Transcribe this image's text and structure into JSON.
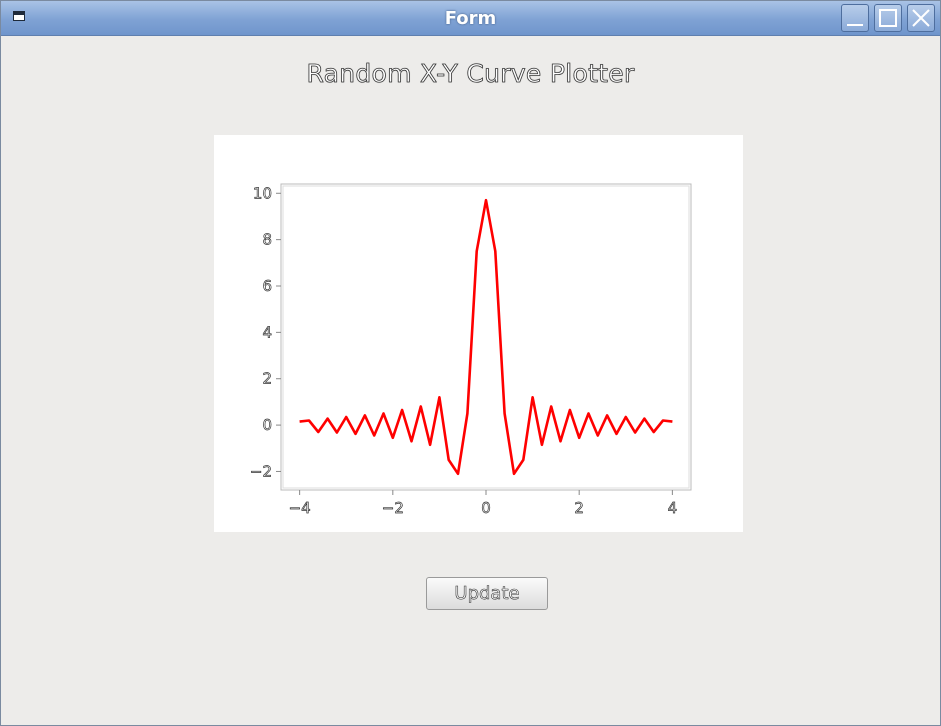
{
  "window": {
    "title": "Form"
  },
  "heading": "Random X-Y Curve Plotter",
  "chart_data": {
    "type": "line",
    "title": "",
    "xlabel": "",
    "ylabel": "",
    "xlim": [
      -4.4,
      4.4
    ],
    "ylim": [
      -2.8,
      10.4
    ],
    "x_ticks": [
      -4,
      -2,
      0,
      2,
      4
    ],
    "x_tick_labels": [
      "−4",
      "−2",
      "0",
      "2",
      "4"
    ],
    "y_ticks": [
      -2,
      0,
      2,
      4,
      6,
      8,
      10
    ],
    "y_tick_labels": [
      "−2",
      "0",
      "2",
      "4",
      "6",
      "8",
      "10"
    ],
    "grid": false,
    "legend": "none",
    "series": [
      {
        "color": "#ff0000",
        "x": [
          -4.0,
          -3.8,
          -3.6,
          -3.4,
          -3.2,
          -3.0,
          -2.8,
          -2.6,
          -2.4,
          -2.2,
          -2.0,
          -1.8,
          -1.6,
          -1.4,
          -1.2,
          -1.0,
          -0.8,
          -0.6,
          -0.4,
          -0.2,
          0.0,
          0.2,
          0.4,
          0.6,
          0.8,
          1.0,
          1.2,
          1.4,
          1.6,
          1.8,
          2.0,
          2.2,
          2.4,
          2.6,
          2.8,
          3.0,
          3.2,
          3.4,
          3.6,
          3.8,
          4.0
        ],
        "y": [
          0.15,
          0.2,
          -0.3,
          0.28,
          -0.32,
          0.35,
          -0.38,
          0.42,
          -0.45,
          0.5,
          -0.55,
          0.65,
          -0.7,
          0.8,
          -0.85,
          1.2,
          -1.5,
          -2.1,
          0.5,
          7.5,
          9.7,
          7.5,
          0.5,
          -2.1,
          -1.5,
          1.2,
          -0.85,
          0.8,
          -0.7,
          0.65,
          -0.55,
          0.5,
          -0.45,
          0.42,
          -0.38,
          0.35,
          -0.32,
          0.28,
          -0.3,
          0.2,
          0.15
        ]
      }
    ]
  },
  "update_button": {
    "label": "Update"
  },
  "icons": {
    "system_menu": "window-menu-icon",
    "minimize": "minimize-icon",
    "maximize": "maximize-icon",
    "close": "close-icon"
  }
}
